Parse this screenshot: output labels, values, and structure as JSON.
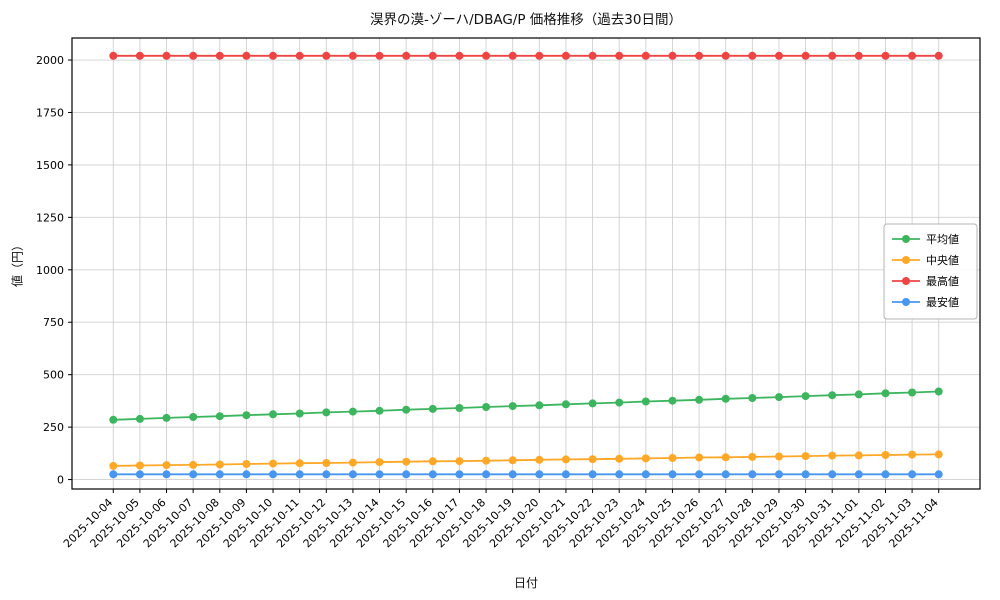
{
  "chart_data": {
    "type": "line",
    "title": "淏界の漠-ゾーハ/DBAG/P 価格推移（過去30日間）",
    "xlabel": "日付",
    "ylabel": "値（円）",
    "grid": true,
    "legend_position": "right",
    "ylim": [
      -45,
      2105
    ],
    "yticks": [
      0,
      250,
      500,
      750,
      1000,
      1250,
      1500,
      1750,
      2000
    ],
    "categories": [
      "2025-10-04",
      "2025-10-05",
      "2025-10-06",
      "2025-10-07",
      "2025-10-08",
      "2025-10-09",
      "2025-10-10",
      "2025-10-11",
      "2025-10-12",
      "2025-10-13",
      "2025-10-14",
      "2025-10-15",
      "2025-10-16",
      "2025-10-17",
      "2025-10-18",
      "2025-10-19",
      "2025-10-20",
      "2025-10-21",
      "2025-10-22",
      "2025-10-23",
      "2025-10-24",
      "2025-10-25",
      "2025-10-26",
      "2025-10-27",
      "2025-10-28",
      "2025-10-29",
      "2025-10-30",
      "2025-10-31",
      "2025-11-01",
      "2025-11-02",
      "2025-11-03",
      "2025-11-04"
    ],
    "series": [
      {
        "name": "平均値",
        "color": "#3cb55e",
        "values": [
          285,
          289,
          294,
          298,
          302,
          307,
          311,
          315,
          320,
          324,
          328,
          333,
          337,
          341,
          346,
          350,
          354,
          359,
          363,
          367,
          372,
          376,
          380,
          385,
          389,
          393,
          398,
          402,
          406,
          411,
          415,
          420
        ]
      },
      {
        "name": "中央値",
        "color": "#ffa726",
        "values": [
          65,
          67,
          69,
          70,
          72,
          74,
          76,
          78,
          79,
          81,
          83,
          85,
          87,
          88,
          90,
          92,
          94,
          96,
          97,
          99,
          101,
          103,
          105,
          106,
          108,
          110,
          112,
          114,
          115,
          117,
          119,
          120
        ]
      },
      {
        "name": "最高値",
        "color": "#ef4444",
        "values": [
          2020,
          2020,
          2020,
          2020,
          2020,
          2020,
          2020,
          2020,
          2020,
          2020,
          2020,
          2020,
          2020,
          2020,
          2020,
          2020,
          2020,
          2020,
          2020,
          2020,
          2020,
          2020,
          2020,
          2020,
          2020,
          2020,
          2020,
          2020,
          2020,
          2020,
          2020,
          2020
        ]
      },
      {
        "name": "最安値",
        "color": "#4896f0",
        "values": [
          25,
          25,
          25,
          25,
          25,
          25,
          25,
          25,
          25,
          25,
          25,
          25,
          25,
          25,
          25,
          25,
          25,
          25,
          25,
          25,
          25,
          25,
          25,
          25,
          25,
          25,
          25,
          25,
          25,
          25,
          25,
          25
        ]
      }
    ]
  }
}
